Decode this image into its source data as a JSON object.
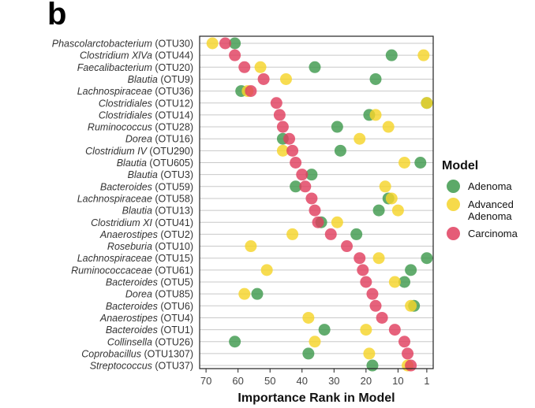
{
  "panel_label": "b",
  "legend": {
    "title": "Model",
    "items": [
      {
        "label": "Adenoma",
        "color": "#3f9a4e"
      },
      {
        "label": "Advanced\nAdenoma",
        "color": "#f5d42a"
      },
      {
        "label": "Carcinoma",
        "color": "#e0405f"
      }
    ]
  },
  "chart_data": {
    "type": "scatter",
    "title": "",
    "xlabel": "Importance Rank in Model",
    "ylabel": "",
    "xlim": [
      72,
      -1
    ],
    "x_reversed": true,
    "x_ticks": [
      70,
      60,
      50,
      40,
      30,
      20,
      10,
      1
    ],
    "grid": "horizontal",
    "legend_position": "right",
    "categories": [
      {
        "taxon": "Phascolarctobacterium",
        "otu": " (OTU30)"
      },
      {
        "taxon": "Clostridium XlVa",
        "otu": " (OTU44)"
      },
      {
        "taxon": "Faecalibacterium",
        "otu": " (OTU20)"
      },
      {
        "taxon": "Blautia",
        "otu": " (OTU9)"
      },
      {
        "taxon": "Lachnospiraceae",
        "otu": " (OTU36)"
      },
      {
        "taxon": "Clostridiales",
        "otu": " (OTU12)"
      },
      {
        "taxon": "Clostridiales",
        "otu": " (OTU14)"
      },
      {
        "taxon": "Ruminococcus",
        "otu": " (OTU28)"
      },
      {
        "taxon": "Dorea",
        "otu": " (OTU16)"
      },
      {
        "taxon": "Clostridium IV",
        "otu": " (OTU290)"
      },
      {
        "taxon": "Blautia",
        "otu": " (OTU605)"
      },
      {
        "taxon": "Blautia",
        "otu": " (OTU3)"
      },
      {
        "taxon": "Bacteroides",
        "otu": " (OTU59)"
      },
      {
        "taxon": "Lachnospiraceae",
        "otu": " (OTU58)"
      },
      {
        "taxon": "Blautia",
        "otu": " (OTU13)"
      },
      {
        "taxon": "Clostridium XI",
        "otu": " (OTU41)"
      },
      {
        "taxon": "Anaerostipes",
        "otu": " (OTU2)"
      },
      {
        "taxon": "Roseburia",
        "otu": " (OTU10)"
      },
      {
        "taxon": "Lachnospiraceae",
        "otu": " (OTU15)"
      },
      {
        "taxon": "Ruminococcaceae",
        "otu": " (OTU61)"
      },
      {
        "taxon": "Bacteroides",
        "otu": " (OTU5)"
      },
      {
        "taxon": "Dorea",
        "otu": " (OTU85)"
      },
      {
        "taxon": "Bacteroides",
        "otu": " (OTU6)"
      },
      {
        "taxon": "Anaerostipes",
        "otu": " (OTU4)"
      },
      {
        "taxon": "Bacteroides",
        "otu": " (OTU1)"
      },
      {
        "taxon": "Collinsella",
        "otu": " (OTU26)"
      },
      {
        "taxon": "Coprobacillus",
        "otu": " (OTU1307)"
      },
      {
        "taxon": "Streptococcus",
        "otu": " (OTU37)"
      }
    ],
    "series": [
      {
        "name": "Adenoma",
        "color": "#3f9a4e",
        "values": [
          61,
          12,
          36,
          17,
          59,
          1,
          19,
          29,
          46,
          28,
          3,
          37,
          42,
          13,
          16,
          34,
          23,
          null,
          1,
          6,
          8,
          54,
          5,
          null,
          33,
          61,
          38,
          18
        ]
      },
      {
        "name": "Advanced Adenoma",
        "color": "#f5d42a",
        "values": [
          68,
          2,
          53,
          45,
          57,
          1,
          17,
          13,
          22,
          46,
          8,
          null,
          14,
          12,
          10,
          29,
          43,
          56,
          16,
          51,
          11,
          58,
          6,
          38,
          20,
          36,
          19,
          7
        ]
      },
      {
        "name": "Carcinoma",
        "color": "#e0405f",
        "values": [
          64,
          61,
          58,
          52,
          56,
          48,
          47,
          46,
          44,
          43,
          42,
          40,
          39,
          37,
          36,
          35,
          31,
          26,
          22,
          21,
          20,
          18,
          17,
          15,
          11,
          8,
          7,
          6
        ]
      }
    ]
  }
}
